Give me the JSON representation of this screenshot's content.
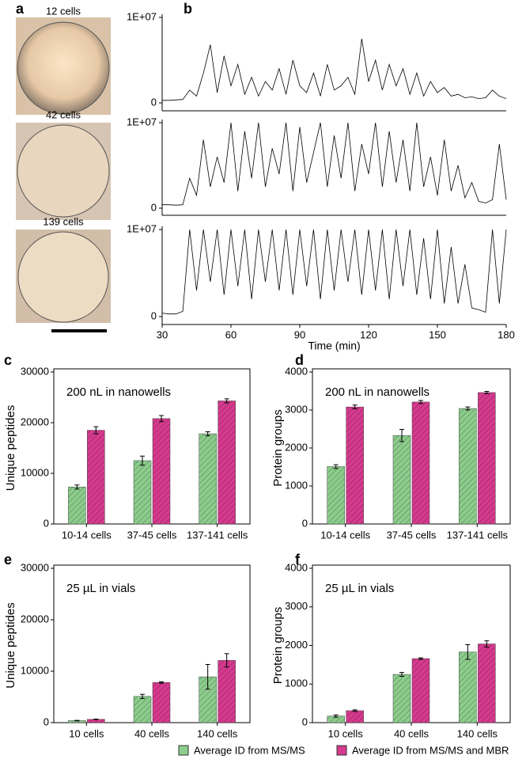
{
  "panel_a": {
    "label": "a",
    "captions": [
      "12 cells",
      "42 cells",
      "139 cells"
    ]
  },
  "chart_data": [
    {
      "type": "line",
      "panel_label": "b",
      "color": "#000000",
      "xlim": [
        30,
        180
      ],
      "ylim": [
        0,
        10000000
      ],
      "yticks": [
        0,
        {
          "value": 10000000,
          "label": "1E+07"
        }
      ],
      "x": [
        30,
        33,
        36,
        39,
        42,
        45,
        48,
        51,
        54,
        57,
        60,
        63,
        66,
        69,
        72,
        75,
        78,
        81,
        84,
        87,
        90,
        93,
        96,
        99,
        102,
        105,
        108,
        111,
        114,
        117,
        120,
        123,
        126,
        129,
        132,
        135,
        138,
        141,
        144,
        147,
        150,
        153,
        156,
        159,
        162,
        165,
        168,
        171,
        174,
        177,
        180
      ],
      "values": [
        300000,
        300000,
        350000,
        400000,
        1500000,
        800000,
        3500000,
        6800000,
        1200000,
        5500000,
        2000000,
        4500000,
        1000000,
        3000000,
        800000,
        2500000,
        1500000,
        4000000,
        1000000,
        5000000,
        2000000,
        1200000,
        3500000,
        800000,
        4500000,
        1500000,
        2000000,
        3000000,
        1000000,
        7500000,
        2500000,
        5000000,
        1500000,
        4500000,
        2000000,
        4000000,
        1000000,
        3500000,
        800000,
        2500000,
        1200000,
        1800000,
        800000,
        1000000,
        600000,
        700000,
        500000,
        600000,
        1500000,
        800000,
        500000
      ]
    },
    {
      "type": "line",
      "color": "#000000",
      "xlim": [
        30,
        180
      ],
      "ylim": [
        0,
        10000000
      ],
      "yticks": [
        0,
        {
          "value": 10000000,
          "label": "1E+07"
        }
      ],
      "x": [
        30,
        33,
        36,
        39,
        42,
        45,
        48,
        51,
        54,
        57,
        60,
        63,
        66,
        69,
        72,
        75,
        78,
        81,
        84,
        87,
        90,
        93,
        96,
        99,
        102,
        105,
        108,
        111,
        114,
        117,
        120,
        123,
        126,
        129,
        132,
        135,
        138,
        141,
        144,
        147,
        150,
        153,
        156,
        159,
        162,
        165,
        168,
        171,
        174,
        177,
        180
      ],
      "values": [
        400000,
        400000,
        350000,
        400000,
        3500000,
        1500000,
        8000000,
        2500000,
        6000000,
        3000000,
        10000000,
        2000000,
        9000000,
        3500000,
        10000000,
        2500000,
        7000000,
        4000000,
        10000000,
        2000000,
        9500000,
        3000000,
        6500000,
        10000000,
        2500000,
        8500000,
        3500000,
        10000000,
        2000000,
        7500000,
        4000000,
        10000000,
        2500000,
        9000000,
        3000000,
        8000000,
        2000000,
        10000000,
        2500000,
        6000000,
        1500000,
        8000000,
        2000000,
        5000000,
        1200000,
        3000000,
        800000,
        600000,
        1000000,
        7500000,
        1000000
      ]
    },
    {
      "type": "line",
      "color": "#000000",
      "xlim": [
        30,
        180
      ],
      "ylim": [
        0,
        10000000
      ],
      "yticks": [
        0,
        {
          "value": 10000000,
          "label": "1E+07"
        }
      ],
      "xticks": [
        30,
        60,
        90,
        120,
        150,
        180
      ],
      "x_label": "Time (min)",
      "x": [
        30,
        33,
        36,
        39,
        42,
        45,
        48,
        51,
        54,
        57,
        60,
        63,
        66,
        69,
        72,
        75,
        78,
        81,
        84,
        87,
        90,
        93,
        96,
        99,
        102,
        105,
        108,
        111,
        114,
        117,
        120,
        123,
        126,
        129,
        132,
        135,
        138,
        141,
        144,
        147,
        150,
        153,
        156,
        159,
        162,
        165,
        168,
        171,
        174,
        177,
        180
      ],
      "values": [
        400000,
        300000,
        300000,
        600000,
        10000000,
        3000000,
        10000000,
        4000000,
        10000000,
        2500000,
        10000000,
        3500000,
        10000000,
        2000000,
        10000000,
        4000000,
        10000000,
        3000000,
        10000000,
        2500000,
        10000000,
        3500000,
        10000000,
        2000000,
        10000000,
        3000000,
        10000000,
        4000000,
        10000000,
        2500000,
        10000000,
        3000000,
        10000000,
        2000000,
        10000000,
        3500000,
        10000000,
        2500000,
        9000000,
        2000000,
        10000000,
        1500000,
        8000000,
        1500000,
        6000000,
        1000000,
        800000,
        500000,
        10000000,
        1500000,
        10000000
      ]
    },
    {
      "type": "bar",
      "panel_label": "c",
      "y_label": "Unique peptides",
      "annotation": "200 nL in nanowells",
      "categories": [
        "10-14 cells",
        "37-45 cells",
        "137-141 cells"
      ],
      "ylim": [
        0,
        30000
      ],
      "yticks": [
        0,
        10000,
        20000,
        30000
      ],
      "series": [
        {
          "name": "Average ID from MS/MS",
          "color": "#8ccc8c",
          "values": [
            7300,
            12500,
            17800
          ],
          "errors": [
            400,
            900,
            400
          ]
        },
        {
          "name": "Average ID from MS/MS and MBR",
          "color": "#d63a8e",
          "values": [
            18500,
            20800,
            24300
          ],
          "errors": [
            700,
            600,
            400
          ]
        }
      ]
    },
    {
      "type": "bar",
      "panel_label": "d",
      "y_label": "Protein groups",
      "annotation": "200 nL in nanowells",
      "categories": [
        "10-14 cells",
        "37-45 cells",
        "137-141 cells"
      ],
      "ylim": [
        0,
        4000
      ],
      "yticks": [
        0,
        1000,
        2000,
        3000,
        4000
      ],
      "series": [
        {
          "color": "#8ccc8c",
          "values": [
            1510,
            2330,
            3040
          ],
          "errors": [
            50,
            160,
            40
          ]
        },
        {
          "color": "#d63a8e",
          "values": [
            3080,
            3210,
            3460
          ],
          "errors": [
            50,
            40,
            30
          ]
        }
      ]
    },
    {
      "type": "bar",
      "panel_label": "e",
      "y_label": "Unique peptides",
      "annotation": "25 µL in vials",
      "categories": [
        "10 cells",
        "40 cells",
        "140 cells"
      ],
      "ylim": [
        0,
        30000
      ],
      "yticks": [
        0,
        10000,
        20000,
        30000
      ],
      "series": [
        {
          "color": "#8ccc8c",
          "values": [
            400,
            5100,
            8900
          ],
          "errors": [
            50,
            400,
            2400
          ]
        },
        {
          "color": "#d63a8e",
          "values": [
            650,
            7800,
            12100
          ],
          "errors": [
            50,
            150,
            1300
          ]
        }
      ]
    },
    {
      "type": "bar",
      "panel_label": "f",
      "y_label": "Protein groups",
      "annotation": "25 µL in vials",
      "categories": [
        "10 cells",
        "40 cells",
        "140 cells"
      ],
      "ylim": [
        0,
        4000
      ],
      "yticks": [
        0,
        1000,
        2000,
        3000,
        4000
      ],
      "series": [
        {
          "color": "#8ccc8c",
          "values": [
            170,
            1250,
            1830
          ],
          "errors": [
            30,
            50,
            190
          ]
        },
        {
          "color": "#d63a8e",
          "values": [
            310,
            1660,
            2040
          ],
          "errors": [
            20,
            20,
            80
          ]
        }
      ]
    }
  ]
}
